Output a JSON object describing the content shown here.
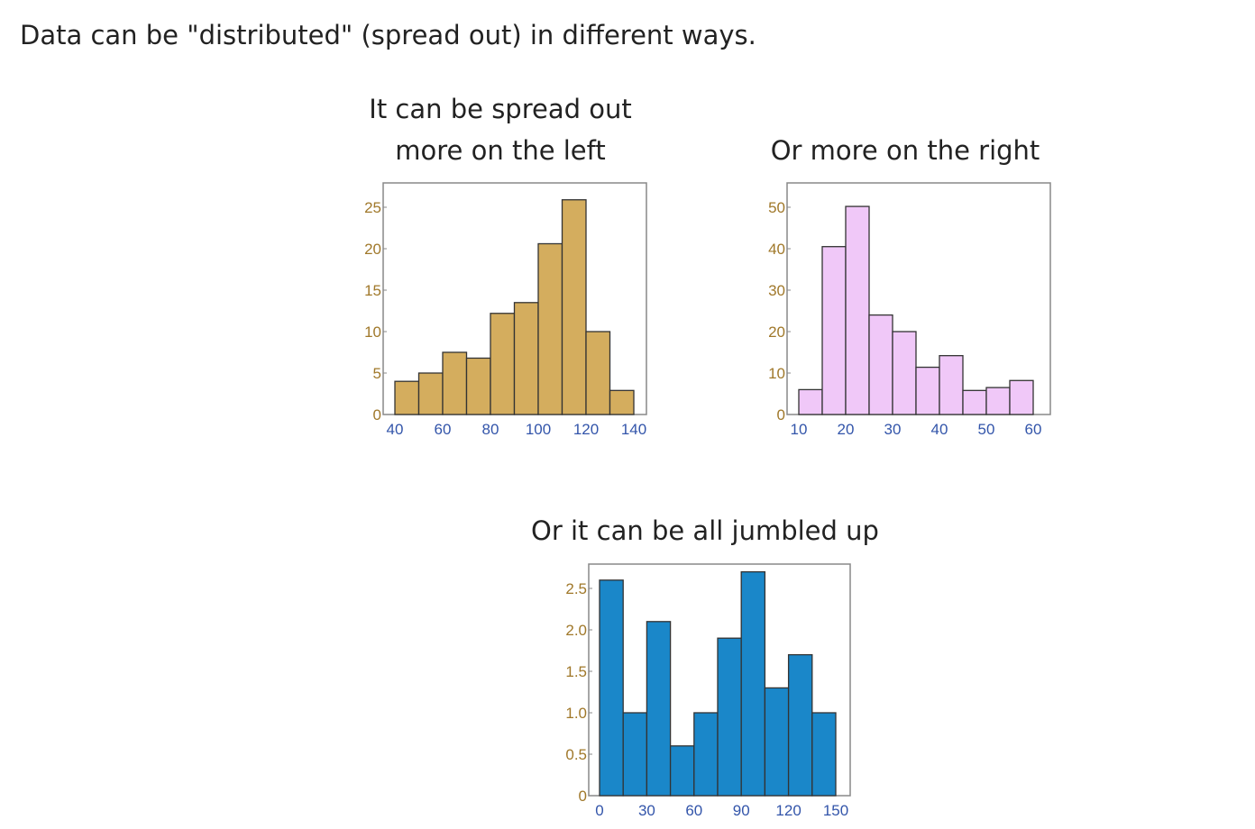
{
  "intro_text": "Data can be \"distributed\" (spread out) in different ways.",
  "chart_data": [
    {
      "type": "bar",
      "caption_line1": "It can be spread out",
      "caption_line2": "more on the left",
      "color": "#d4ad5e",
      "x_ticks": [
        "40",
        "60",
        "80",
        "100",
        "120",
        "140"
      ],
      "xlim": [
        40,
        140
      ],
      "y_ticks": [
        "0",
        "5",
        "10",
        "15",
        "20",
        "25"
      ],
      "ylim": [
        0,
        25
      ],
      "bins": [
        [
          40,
          50
        ],
        [
          50,
          60
        ],
        [
          60,
          70
        ],
        [
          70,
          80
        ],
        [
          80,
          90
        ],
        [
          90,
          100
        ],
        [
          100,
          110
        ],
        [
          110,
          120
        ],
        [
          120,
          130
        ],
        [
          130,
          140
        ]
      ],
      "values": [
        4,
        5,
        7.5,
        6.8,
        12.2,
        13.5,
        20.6,
        25.9,
        10,
        2.9
      ]
    },
    {
      "type": "bar",
      "caption_line1": "Or more on the right",
      "color": "#f0c8f8",
      "x_ticks": [
        "10",
        "20",
        "30",
        "40",
        "50",
        "60"
      ],
      "xlim": [
        10,
        60
      ],
      "y_ticks": [
        "0",
        "10",
        "20",
        "30",
        "40",
        "50"
      ],
      "ylim": [
        0,
        50
      ],
      "bins": [
        [
          10,
          15
        ],
        [
          15,
          20
        ],
        [
          20,
          25
        ],
        [
          25,
          30
        ],
        [
          30,
          35
        ],
        [
          35,
          40
        ],
        [
          40,
          45
        ],
        [
          45,
          50
        ],
        [
          50,
          55
        ],
        [
          55,
          60
        ]
      ],
      "values": [
        6,
        40.5,
        50.2,
        24,
        20,
        11.4,
        14.2,
        5.8,
        6.5,
        8.2
      ]
    },
    {
      "type": "bar",
      "caption_line1": "Or it can be all jumbled up",
      "color": "#1a87c9",
      "x_ticks": [
        "0",
        "30",
        "60",
        "90",
        "120",
        "150"
      ],
      "xlim": [
        0,
        150
      ],
      "y_ticks": [
        "0",
        "0.5",
        "1.0",
        "1.5",
        "2.0",
        "2.5"
      ],
      "ylim": [
        0,
        2.5
      ],
      "bins": [
        [
          0,
          15
        ],
        [
          15,
          30
        ],
        [
          30,
          45
        ],
        [
          45,
          60
        ],
        [
          60,
          75
        ],
        [
          75,
          90
        ],
        [
          90,
          105
        ],
        [
          105,
          120
        ],
        [
          120,
          135
        ],
        [
          135,
          150
        ]
      ],
      "values": [
        2.6,
        1.0,
        2.1,
        0.6,
        1.0,
        1.9,
        2.7,
        1.3,
        1.7,
        1.0
      ]
    }
  ]
}
